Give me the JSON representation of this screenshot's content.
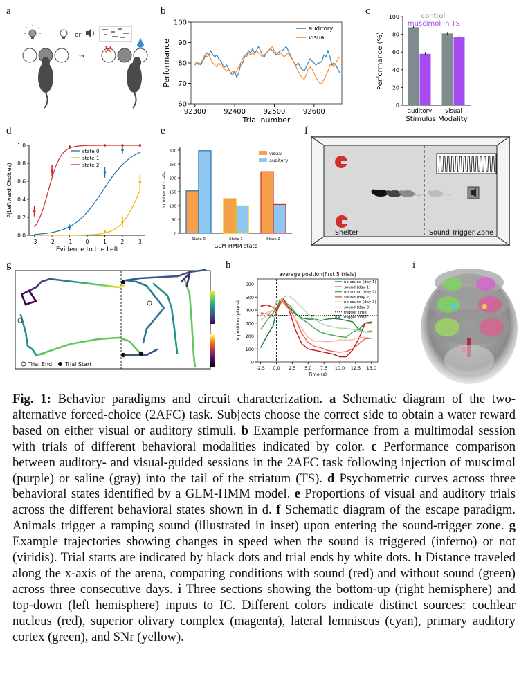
{
  "labels": {
    "a": "a",
    "b": "b",
    "c": "c",
    "d": "d",
    "e": "e",
    "f": "f",
    "g": "g",
    "h": "h",
    "i": "i"
  },
  "panel_a": {
    "or_text": "or"
  },
  "panel_f": {
    "shelter": "Shelter",
    "zone": "Sound Trigger Zone"
  },
  "panel_g": {
    "legend_end": "Trial End",
    "legend_start": "Trial Start"
  },
  "chart_data": [
    {
      "panel": "b",
      "type": "line",
      "xlabel": "Trial number",
      "ylabel": "Performance",
      "xlim": [
        92290,
        92670
      ],
      "ylim": [
        60,
        100
      ],
      "xticks": [
        92300,
        92400,
        92500,
        92600
      ],
      "yticks": [
        60,
        70,
        80,
        90,
        100
      ],
      "legend": "top-right",
      "series": [
        {
          "name": "auditory",
          "color": "#1f77b4",
          "x": [
            92300,
            92305,
            92310,
            92315,
            92320,
            92325,
            92330,
            92335,
            92340,
            92345,
            92350,
            92355,
            92360,
            92365,
            92370,
            92375,
            92380,
            92385,
            92390,
            92395,
            92400,
            92405,
            92410,
            92415,
            92420,
            92425,
            92430,
            92435,
            92440,
            92445,
            92450,
            92455,
            92460,
            92465,
            92470,
            92475,
            92480,
            92485,
            92490,
            92495,
            92500,
            92505,
            92510,
            92515,
            92520,
            92525,
            92530,
            92535,
            92540,
            92545,
            92550,
            92555,
            92560,
            92565,
            92570,
            92575,
            92580,
            92585,
            92590,
            92595,
            92600,
            92605,
            92610,
            92615,
            92620,
            92625,
            92630,
            92635,
            92640,
            92645,
            92650,
            92655,
            92660,
            92665
          ],
          "y": [
            79,
            80,
            80,
            79,
            81,
            83,
            85,
            84,
            86,
            84,
            83,
            84,
            82,
            81,
            79,
            78,
            79,
            77,
            75,
            74,
            76,
            73,
            75,
            79,
            80,
            83,
            84,
            86,
            85,
            87,
            85,
            86,
            88,
            86,
            84,
            83,
            85,
            86,
            87,
            86,
            85,
            84,
            85,
            86,
            86,
            87,
            88,
            86,
            84,
            82,
            80,
            79,
            80,
            78,
            77,
            76,
            78,
            80,
            82,
            81,
            80,
            79,
            80,
            80,
            81,
            84,
            83,
            86,
            83,
            79,
            80,
            79,
            77,
            75
          ]
        },
        {
          "name": "visual",
          "color": "#ff7f0e",
          "x": [
            92300,
            92305,
            92310,
            92315,
            92320,
            92325,
            92330,
            92335,
            92340,
            92345,
            92350,
            92355,
            92360,
            92365,
            92370,
            92375,
            92380,
            92385,
            92390,
            92395,
            92400,
            92405,
            92410,
            92415,
            92420,
            92425,
            92430,
            92435,
            92440,
            92445,
            92450,
            92455,
            92460,
            92465,
            92470,
            92475,
            92480,
            92485,
            92490,
            92495,
            92500,
            92505,
            92510,
            92515,
            92520,
            92525,
            92530,
            92535,
            92540,
            92545,
            92550,
            92555,
            92560,
            92565,
            92570,
            92575,
            92580,
            92585,
            92590,
            92595,
            92600,
            92605,
            92610,
            92615,
            92620,
            92625,
            92630,
            92635,
            92640,
            92645,
            92650,
            92655,
            92660,
            92665
          ],
          "y": [
            80,
            80,
            79,
            80,
            82,
            84,
            83,
            84,
            82,
            80,
            79,
            78,
            80,
            79,
            78,
            77,
            76,
            77,
            75,
            76,
            75,
            76,
            78,
            80,
            82,
            84,
            83,
            85,
            84,
            85,
            84,
            86,
            85,
            84,
            83,
            84,
            85,
            86,
            87,
            88,
            86,
            85,
            84,
            85,
            84,
            83,
            84,
            85,
            83,
            82,
            80,
            78,
            76,
            74,
            73,
            72,
            74,
            77,
            78,
            77,
            75,
            73,
            71,
            70,
            70,
            72,
            74,
            76,
            79,
            80,
            78,
            80,
            82,
            83
          ]
        }
      ]
    },
    {
      "panel": "c",
      "type": "bar",
      "title": "control",
      "xlabel": "Stimulus Modality",
      "ylabel": "Performance (%)",
      "categories": [
        "auditory",
        "visual"
      ],
      "ylim": [
        0,
        100
      ],
      "yticks": [
        0,
        20,
        40,
        60,
        80,
        100
      ],
      "series": [
        {
          "name": "control",
          "color": "#7f8c8d",
          "values": [
            88,
            81
          ],
          "err": [
            1.2,
            1.5
          ]
        },
        {
          "name": "muscimol in TS",
          "color": "#a64cf0",
          "values": [
            58,
            77
          ],
          "err": [
            2.0,
            1.5
          ]
        }
      ]
    },
    {
      "panel": "d",
      "type": "line",
      "xlabel": "Evidence to the Left",
      "ylabel": "P(Leftward Choices)",
      "xlim": [
        -3.3,
        3.3
      ],
      "ylim": [
        0,
        1
      ],
      "xticks": [
        -3,
        -2,
        -1,
        0,
        1,
        2,
        3
      ],
      "yticks": [
        0.0,
        0.2,
        0.4,
        0.6,
        0.8,
        1.0
      ],
      "legend": "top-center",
      "series": [
        {
          "name": "state 0",
          "color": "#1f6fb4",
          "mu": 0.9,
          "s": 0.85,
          "points": [
            [
              -1,
              0.09,
              0.03
            ],
            [
              1,
              0.7,
              0.06
            ],
            [
              2,
              0.95,
              0.04
            ],
            [
              3,
              1.0,
              0.01
            ]
          ]
        },
        {
          "name": "state 1",
          "color": "#f5b400",
          "mu": 3.0,
          "s": 0.55,
          "points": [
            [
              1,
              0.04,
              0.02
            ],
            [
              2,
              0.15,
              0.06
            ],
            [
              3,
              0.59,
              0.08
            ]
          ]
        },
        {
          "name": "state 2",
          "color": "#d62728",
          "mu": -2.2,
          "s": 0.35,
          "points": [
            [
              -3,
              0.27,
              0.06
            ],
            [
              -2,
              0.72,
              0.06
            ],
            [
              -1,
              0.98,
              0.02
            ],
            [
              1,
              1.0,
              0.01
            ],
            [
              2,
              1.0,
              0.01
            ],
            [
              3,
              1.0,
              0.01
            ]
          ]
        }
      ]
    },
    {
      "panel": "e",
      "type": "bar",
      "xlabel": "GLM-HMM state",
      "ylabel": "Number of trials",
      "categories": [
        "State 0",
        "State 1",
        "State 2"
      ],
      "ylim": [
        0,
        310
      ],
      "yticks": [
        0,
        50,
        100,
        150,
        200,
        250,
        300
      ],
      "legend": "top-right",
      "series": [
        {
          "name": "visual",
          "color": "#f5a04a",
          "values": [
            153,
            125,
            222
          ]
        },
        {
          "name": "auditory",
          "color": "#8ec8f2",
          "values": [
            298,
            99,
            104
          ]
        }
      ],
      "edge_colors": [
        "#1f6fb4",
        "#f5b400",
        "#d62728"
      ]
    },
    {
      "panel": "h",
      "type": "line",
      "title": "average position(first 5 trials)",
      "xlabel": "Time (s)",
      "ylabel": "X position (pixels)",
      "xlim": [
        -3,
        16
      ],
      "ylim": [
        0,
        640
      ],
      "xticks": [
        -2.5,
        0.0,
        2.5,
        5.0,
        7.5,
        10.0,
        12.5,
        15.0
      ],
      "yticks": [
        0,
        100,
        200,
        300,
        400,
        500,
        600
      ],
      "hline": 360,
      "vline": 0,
      "legend": "top-right",
      "series": [
        {
          "name": "no sound (day 1)",
          "color": "#1b7a2e",
          "x": [
            -2.5,
            -1.5,
            -0.5,
            0,
            0.5,
            1,
            2,
            3,
            4,
            5,
            6,
            7,
            8,
            9,
            10,
            11,
            12,
            13,
            14,
            15
          ],
          "y": [
            110,
            200,
            280,
            400,
            470,
            460,
            420,
            370,
            340,
            330,
            330,
            320,
            330,
            335,
            330,
            320,
            310,
            250,
            300,
            310
          ]
        },
        {
          "name": "sound (day 1)",
          "color": "#c40f12",
          "x": [
            -2.5,
            -1.5,
            -0.5,
            0,
            0.5,
            1,
            1.5,
            2,
            3,
            4,
            5,
            6,
            7,
            8,
            9,
            10,
            11,
            12,
            13,
            14,
            15
          ],
          "y": [
            430,
            440,
            420,
            400,
            450,
            490,
            460,
            400,
            250,
            140,
            100,
            90,
            80,
            70,
            60,
            40,
            40,
            90,
            180,
            300,
            300
          ]
        },
        {
          "name": "no sound (day 2)",
          "color": "#3fa64a",
          "x": [
            -2.5,
            -1.5,
            -0.5,
            0,
            0.5,
            1,
            2,
            3,
            4,
            5,
            6,
            7,
            8,
            9,
            10,
            11,
            12,
            13,
            14,
            15
          ],
          "y": [
            250,
            320,
            380,
            420,
            460,
            470,
            440,
            380,
            330,
            300,
            260,
            230,
            215,
            205,
            195,
            190,
            230,
            250,
            230,
            240
          ]
        },
        {
          "name": "sound (day 2)",
          "color": "#ee5a4b",
          "x": [
            -2.5,
            -1.5,
            -0.5,
            0,
            0.5,
            1,
            2,
            3,
            4,
            5,
            6,
            7,
            8,
            9,
            10,
            11,
            12,
            13,
            14,
            15
          ],
          "y": [
            380,
            370,
            350,
            380,
            440,
            470,
            420,
            330,
            220,
            150,
            120,
            110,
            90,
            80,
            75,
            80,
            100,
            140,
            180,
            180
          ]
        },
        {
          "name": "no sound (day 3)",
          "color": "#a8d99a",
          "x": [
            -2.5,
            -1.5,
            -0.5,
            0,
            0.5,
            1,
            1.5,
            2,
            3,
            4,
            5,
            6,
            7,
            8,
            9,
            10,
            11,
            12,
            13,
            14,
            15
          ],
          "y": [
            320,
            360,
            400,
            460,
            480,
            490,
            510,
            510,
            470,
            420,
            370,
            330,
            300,
            280,
            270,
            260,
            260,
            250,
            240,
            230,
            230
          ]
        },
        {
          "name": "sound (day 3)",
          "color": "#f7b5a9",
          "x": [
            -2.5,
            -1.5,
            -0.5,
            0,
            0.5,
            1,
            2,
            3,
            4,
            5,
            6,
            7,
            8,
            9,
            10,
            11,
            12,
            13,
            14,
            15
          ],
          "y": [
            360,
            380,
            400,
            470,
            480,
            460,
            400,
            330,
            260,
            190,
            160,
            160,
            155,
            160,
            170,
            170,
            170,
            190,
            190,
            180
          ]
        }
      ],
      "extra_legend": [
        {
          "name": "trigger time",
          "style": "dotted"
        },
        {
          "name": "trigger time",
          "style": "dashed"
        }
      ]
    }
  ],
  "caption": {
    "fig": "Fig. 1:",
    "title": " Behavior paradigms and circuit characterization. ",
    "parts": [
      {
        "b": "a",
        "t": " Schematic diagram of the two-alternative forced-choice (2AFC) task. Subjects choose the correct side to obtain a water reward based on either visual or auditory stimuli. "
      },
      {
        "b": "b",
        "t": " Example performance from a multimodal session with trials of different behavioral modalities indicated by color. "
      },
      {
        "b": "c",
        "t": " Performance comparison between auditory- and visual-guided sessions in the 2AFC task following injection of muscimol (purple) or saline (gray) into the tail of the striatum (TS). "
      },
      {
        "b": "d",
        "t": " Psychometric curves across three behavioral states identified by a GLM-HMM model. "
      },
      {
        "b": "e",
        "t": " Proportions of visual and auditory trials across the different behavioral states shown in d. "
      },
      {
        "b": "f",
        "t": " Schematic diagram of the escape paradigm. Animals trigger a ramping sound (illustrated in inset) upon entering the sound-trigger zone. "
      },
      {
        "b": "g",
        "t": " Example trajectories showing changes in speed when the sound is triggered (inferno) or not (viridis). Trial starts are indicated by black dots and trial ends by white dots. "
      },
      {
        "b": "h",
        "t": " Distance traveled along the x-axis of the arena, comparing conditions with sound (red) and without sound (green) across three consecutive days. "
      },
      {
        "b": "i",
        "t": " Three sections showing the bottom-up (right hemisphere) and top-down (left hemisphere) inputs to IC. Different colors indicate distinct sources: cochlear nucleus (red), superior olivary complex (magenta), lateral lemniscus (cyan), primary auditory cortex (green), and SNr (yellow)."
      }
    ]
  }
}
